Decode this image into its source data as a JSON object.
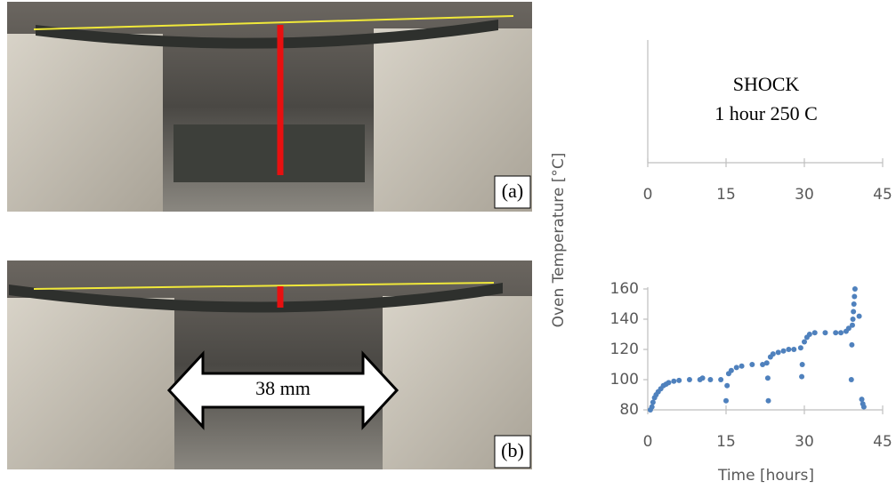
{
  "panels": [
    {
      "label": "(a)"
    },
    {
      "label": "(b)",
      "annotation": "38 mm"
    }
  ],
  "chart_data": [
    {
      "type": "scatter",
      "annotations": [
        "SHOCK",
        "1 hour   250 C"
      ],
      "xlim": [
        0,
        45
      ],
      "xticks": [
        0,
        15,
        30,
        45
      ]
    },
    {
      "type": "scatter",
      "x_label": "Time [hours]",
      "y_label": "Oven Temperature [°C]",
      "xlim": [
        0,
        45
      ],
      "xticks": [
        0,
        15,
        30,
        45
      ],
      "ylim": [
        80,
        160
      ],
      "yticks": [
        80,
        100,
        120,
        140,
        160
      ],
      "series": [
        {
          "color": "#4f81bd",
          "x": [
            0.5,
            0.8,
            1,
            1.3,
            1.6,
            2,
            2.5,
            3,
            3.5,
            4,
            5,
            6,
            8,
            10,
            10.5,
            12,
            14,
            15,
            15.2,
            15.5,
            16,
            17,
            18,
            20,
            22,
            22.8,
            23,
            23.1,
            23.5,
            24,
            25,
            26,
            27,
            28,
            29.3,
            29.5,
            29.6,
            30,
            30.5,
            31,
            32,
            34,
            36,
            37,
            38,
            38.5,
            39,
            39.1,
            39.2,
            39.3,
            39.4,
            39.5,
            39.6,
            39.7,
            40.5,
            41,
            41.2,
            41.4
          ],
          "y": [
            80,
            82,
            85,
            88,
            90,
            92,
            94,
            96,
            97,
            98,
            99,
            99.5,
            100,
            100,
            101,
            100,
            100,
            86,
            96,
            104,
            106,
            108,
            109,
            110,
            110,
            111,
            101,
            86,
            115,
            117,
            118,
            119,
            120,
            120,
            121,
            102,
            110,
            125,
            128,
            130,
            131,
            131,
            131,
            131,
            132,
            134,
            100,
            123,
            136,
            140,
            145,
            150,
            155,
            160,
            142,
            87,
            84,
            82
          ]
        }
      ]
    }
  ]
}
